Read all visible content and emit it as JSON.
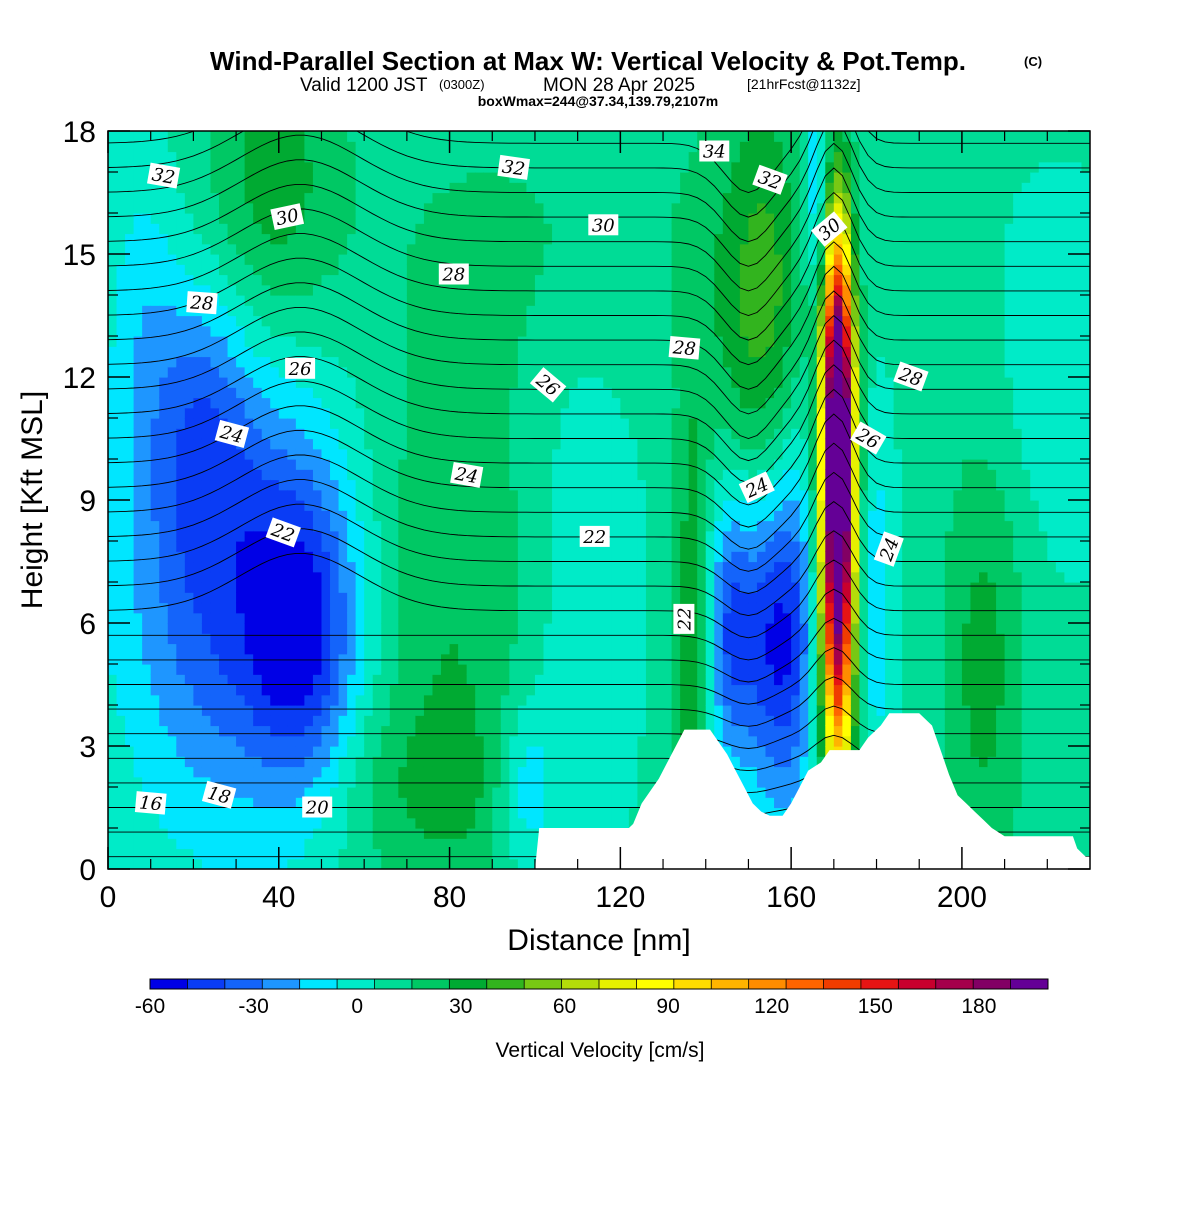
{
  "title": {
    "main": "Wind-Parallel Section at Max W: Vertical Velocity & Pot.Temp.",
    "main_tag": "(C)",
    "valid_prefix": "Valid 1200 JST",
    "valid_utc": "(0300Z)",
    "valid_date": "MON 28 Apr 2025",
    "valid_fcst": "[21hrFcst@1132z]",
    "box": "boxWmax=244@37.34,139.79,2107m"
  },
  "chart_data": {
    "type": "heatmap",
    "xlabel": "Distance [nm]",
    "ylabel": "Height [Kft MSL]",
    "xlim": [
      0,
      230
    ],
    "ylim": [
      0,
      18
    ],
    "x_ticks": [
      0,
      40,
      80,
      120,
      160,
      200
    ],
    "y_ticks": [
      0,
      3,
      6,
      9,
      12,
      15,
      18
    ],
    "colorbar": {
      "label": "Vertical Velocity [cm/s]",
      "min": -60,
      "max": 200,
      "step": 10,
      "tick_values": [
        -60,
        -30,
        0,
        30,
        60,
        90,
        120,
        150,
        180
      ],
      "colors": [
        "#0000e6",
        "#0a3cf5",
        "#1464fa",
        "#1e96ff",
        "#00e6ff",
        "#00ebc8",
        "#00dc96",
        "#00c864",
        "#00aa32",
        "#32b41e",
        "#78c814",
        "#b4dc0a",
        "#e6f000",
        "#ffff00",
        "#ffdc00",
        "#ffb400",
        "#ff8c00",
        "#ff6400",
        "#f03c00",
        "#e61414",
        "#c8002d",
        "#a5004b",
        "#820064",
        "#640096"
      ]
    },
    "terrain": [
      [
        0,
        0
      ],
      [
        100,
        0
      ],
      [
        101,
        1
      ],
      [
        122,
        1
      ],
      [
        123,
        1.1
      ],
      [
        125,
        1.6
      ],
      [
        127,
        1.9
      ],
      [
        129,
        2.2
      ],
      [
        131,
        2.6
      ],
      [
        133,
        3
      ],
      [
        135,
        3.4
      ],
      [
        141,
        3.4
      ],
      [
        143,
        3.1
      ],
      [
        145,
        2.8
      ],
      [
        147,
        2.4
      ],
      [
        149,
        2.0
      ],
      [
        151,
        1.6
      ],
      [
        153,
        1.4
      ],
      [
        155,
        1.3
      ],
      [
        158,
        1.3
      ],
      [
        160,
        1.6
      ],
      [
        162,
        2.0
      ],
      [
        164,
        2.4
      ],
      [
        167,
        2.6
      ],
      [
        169,
        2.9
      ],
      [
        176,
        2.9
      ],
      [
        178,
        3.2
      ],
      [
        181,
        3.5
      ],
      [
        183,
        3.8
      ],
      [
        190,
        3.8
      ],
      [
        193,
        3.5
      ],
      [
        195,
        2.9
      ],
      [
        197,
        2.3
      ],
      [
        199,
        1.8
      ],
      [
        201,
        1.6
      ],
      [
        203,
        1.4
      ],
      [
        205,
        1.2
      ],
      [
        207,
        1.0
      ],
      [
        210,
        0.8
      ],
      [
        226,
        0.8
      ],
      [
        227,
        0.5
      ],
      [
        229,
        0.3
      ],
      [
        230,
        0.3
      ]
    ],
    "w_field": [
      {
        "x": 28,
        "y": 7.0,
        "sx": 18,
        "sy": 4.5,
        "w": -42
      },
      {
        "x": 46,
        "y": 5.6,
        "sx": 9,
        "sy": 2.8,
        "w": -40
      },
      {
        "x": 22,
        "y": 11.0,
        "sx": 8,
        "sy": 2.5,
        "w": -20
      },
      {
        "x": 38,
        "y": 16.5,
        "sx": 12,
        "sy": 3,
        "w": 26
      },
      {
        "x": 8,
        "y": 14.0,
        "sx": 6,
        "sy": 3,
        "w": -12
      },
      {
        "x": 80,
        "y": 6.0,
        "sx": 14,
        "sy": 6,
        "w": 18
      },
      {
        "x": 70,
        "y": 2.0,
        "sx": 25,
        "sy": 1.5,
        "w": 10
      },
      {
        "x": 112,
        "y": 6.0,
        "sx": 8,
        "sy": 5,
        "w": -12
      },
      {
        "x": 98,
        "y": 2.0,
        "sx": 5,
        "sy": 1.5,
        "w": -25
      },
      {
        "x": 137,
        "y": 5.5,
        "sx": 3,
        "sy": 4.5,
        "w": 28
      },
      {
        "x": 146,
        "y": 6.0,
        "sx": 4.5,
        "sy": 2.5,
        "w": -45
      },
      {
        "x": 157,
        "y": 5.8,
        "sx": 5,
        "sy": 3,
        "w": -55
      },
      {
        "x": 154,
        "y": 13.5,
        "sx": 9,
        "sy": 4,
        "w": 32
      },
      {
        "x": 162,
        "y": 9.0,
        "sx": 3,
        "sy": 6,
        "w": -12
      },
      {
        "x": 171,
        "y": 8.5,
        "sx": 2.6,
        "sy": 4.2,
        "w": 205
      },
      {
        "x": 171,
        "y": 12.0,
        "sx": 2.2,
        "sy": 2.5,
        "w": 70
      },
      {
        "x": 166,
        "y": 16.5,
        "sx": 2,
        "sy": 2,
        "w": -30
      },
      {
        "x": 180,
        "y": 6.5,
        "sx": 3,
        "sy": 3,
        "w": -20
      },
      {
        "x": 205,
        "y": 5.0,
        "sx": 7,
        "sy": 4,
        "w": 22
      },
      {
        "x": 222,
        "y": 12.0,
        "sx": 10,
        "sy": 3,
        "w": -10
      },
      {
        "x": 110,
        "y": 15.5,
        "sx": 30,
        "sy": 2.5,
        "w": 8
      }
    ],
    "theta_labels": [
      {
        "value": "32",
        "x": 13,
        "y": 16.9,
        "rot": 10
      },
      {
        "value": "30",
        "x": 42,
        "y": 15.9,
        "rot": -12
      },
      {
        "value": "28",
        "x": 22,
        "y": 13.8,
        "rot": 4
      },
      {
        "value": "26",
        "x": 45,
        "y": 12.2,
        "rot": 0
      },
      {
        "value": "24",
        "x": 29,
        "y": 10.6,
        "rot": 15
      },
      {
        "value": "22",
        "x": 41,
        "y": 8.2,
        "rot": 20
      },
      {
        "value": "32",
        "x": 95,
        "y": 17.1,
        "rot": 8
      },
      {
        "value": "30",
        "x": 116,
        "y": 15.7,
        "rot": 0
      },
      {
        "value": "28",
        "x": 81,
        "y": 14.5,
        "rot": 0
      },
      {
        "value": "26",
        "x": 103,
        "y": 11.8,
        "rot": 40
      },
      {
        "value": "24",
        "x": 84,
        "y": 9.6,
        "rot": 10
      },
      {
        "value": "22",
        "x": 114,
        "y": 8.1,
        "rot": 0
      },
      {
        "value": "34",
        "x": 142,
        "y": 17.5,
        "rot": 0
      },
      {
        "value": "32",
        "x": 155,
        "y": 16.8,
        "rot": 20
      },
      {
        "value": "30",
        "x": 169,
        "y": 15.6,
        "rot": -40
      },
      {
        "value": "28",
        "x": 135,
        "y": 12.7,
        "rot": 5
      },
      {
        "value": "24",
        "x": 152,
        "y": 9.3,
        "rot": -25
      },
      {
        "value": "22",
        "x": 135,
        "y": 6.1,
        "rot": -90
      },
      {
        "value": "26",
        "x": 178,
        "y": 10.5,
        "rot": 30
      },
      {
        "value": "28",
        "x": 188,
        "y": 12.0,
        "rot": 20
      },
      {
        "value": "24",
        "x": 183,
        "y": 7.8,
        "rot": -70
      },
      {
        "value": "16",
        "x": 10,
        "y": 1.6,
        "rot": 5
      },
      {
        "value": "18",
        "x": 26,
        "y": 1.8,
        "rot": 15
      },
      {
        "value": "20",
        "x": 49,
        "y": 1.5,
        "rot": 0
      }
    ]
  }
}
